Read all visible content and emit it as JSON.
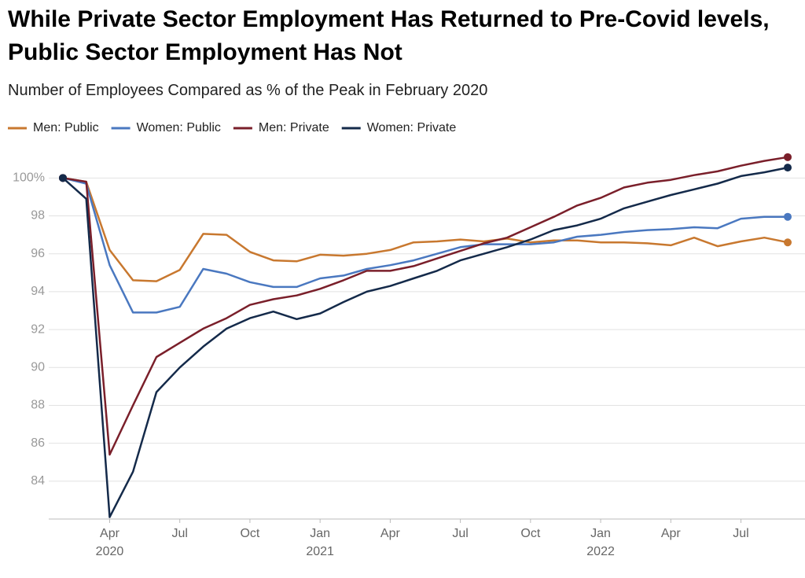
{
  "chart_data": {
    "type": "line",
    "title": "While Private Sector Employment Has Returned to Pre-Covid levels, Public Sector Employment Has Not",
    "subtitle": "Number of Employees Compared as % of the Peak in February 2020",
    "x": [
      "2020-02",
      "2020-03",
      "2020-04",
      "2020-05",
      "2020-06",
      "2020-07",
      "2020-08",
      "2020-09",
      "2020-10",
      "2020-11",
      "2020-12",
      "2021-01",
      "2021-02",
      "2021-03",
      "2021-04",
      "2021-05",
      "2021-06",
      "2021-07",
      "2021-08",
      "2021-09",
      "2021-10",
      "2021-11",
      "2021-12",
      "2022-01",
      "2022-02",
      "2022-03",
      "2022-04",
      "2022-05",
      "2022-06",
      "2022-07",
      "2022-08",
      "2022-09"
    ],
    "xlim": [
      "2020-02",
      "2022-09"
    ],
    "xticks": [
      {
        "value": "2020-04",
        "label": "Apr 2020"
      },
      {
        "value": "2020-07",
        "label": "Jul"
      },
      {
        "value": "2020-10",
        "label": "Oct"
      },
      {
        "value": "2021-01",
        "label": "Jan 2021"
      },
      {
        "value": "2021-04",
        "label": "Apr"
      },
      {
        "value": "2021-07",
        "label": "Jul"
      },
      {
        "value": "2021-10",
        "label": "Oct"
      },
      {
        "value": "2022-01",
        "label": "Jan 2022"
      },
      {
        "value": "2022-04",
        "label": "Apr"
      },
      {
        "value": "2022-07",
        "label": "Jul"
      }
    ],
    "ylim": [
      82,
      101.3
    ],
    "yticks": [
      {
        "value": 100,
        "label": "100%"
      },
      98,
      96,
      94,
      92,
      90,
      88,
      86,
      84
    ],
    "grid": true,
    "legend": "top",
    "series": [
      {
        "name": "Men: Public",
        "color": "#c8782f",
        "values": [
          100,
          99.8,
          96.2,
          94.6,
          94.55,
          95.15,
          97.05,
          97.0,
          96.1,
          95.65,
          95.6,
          95.95,
          95.9,
          96.0,
          96.2,
          96.6,
          96.65,
          96.75,
          96.65,
          96.8,
          96.6,
          96.7,
          96.7,
          96.6,
          96.6,
          96.55,
          96.45,
          96.85,
          96.4,
          96.65,
          96.85,
          96.6
        ]
      },
      {
        "name": "Women: Public",
        "color": "#4a78c0",
        "values": [
          100,
          99.7,
          95.4,
          92.9,
          92.9,
          93.2,
          95.2,
          94.95,
          94.5,
          94.25,
          94.25,
          94.7,
          94.85,
          95.2,
          95.4,
          95.65,
          96.0,
          96.35,
          96.5,
          96.5,
          96.5,
          96.6,
          96.9,
          97.0,
          97.15,
          97.25,
          97.3,
          97.4,
          97.35,
          97.85,
          97.95,
          97.95
        ]
      },
      {
        "name": "Men: Private",
        "color": "#7a1f2a",
        "values": [
          100,
          99.8,
          85.4,
          88.0,
          90.55,
          91.3,
          92.05,
          92.6,
          93.3,
          93.6,
          93.8,
          94.15,
          94.6,
          95.1,
          95.1,
          95.35,
          95.75,
          96.15,
          96.55,
          96.85,
          97.4,
          97.95,
          98.55,
          98.95,
          99.5,
          99.75,
          99.9,
          100.15,
          100.35,
          100.65,
          100.9,
          101.1
        ]
      },
      {
        "name": "Women: Private",
        "color": "#142a4a",
        "values": [
          100,
          98.9,
          82.1,
          84.5,
          88.7,
          90.0,
          91.1,
          92.05,
          92.6,
          92.95,
          92.55,
          92.85,
          93.45,
          94.0,
          94.3,
          94.7,
          95.1,
          95.65,
          96.0,
          96.35,
          96.75,
          97.25,
          97.5,
          97.85,
          98.4,
          98.75,
          99.1,
          99.4,
          99.7,
          100.1,
          100.3,
          100.55
        ]
      }
    ]
  }
}
